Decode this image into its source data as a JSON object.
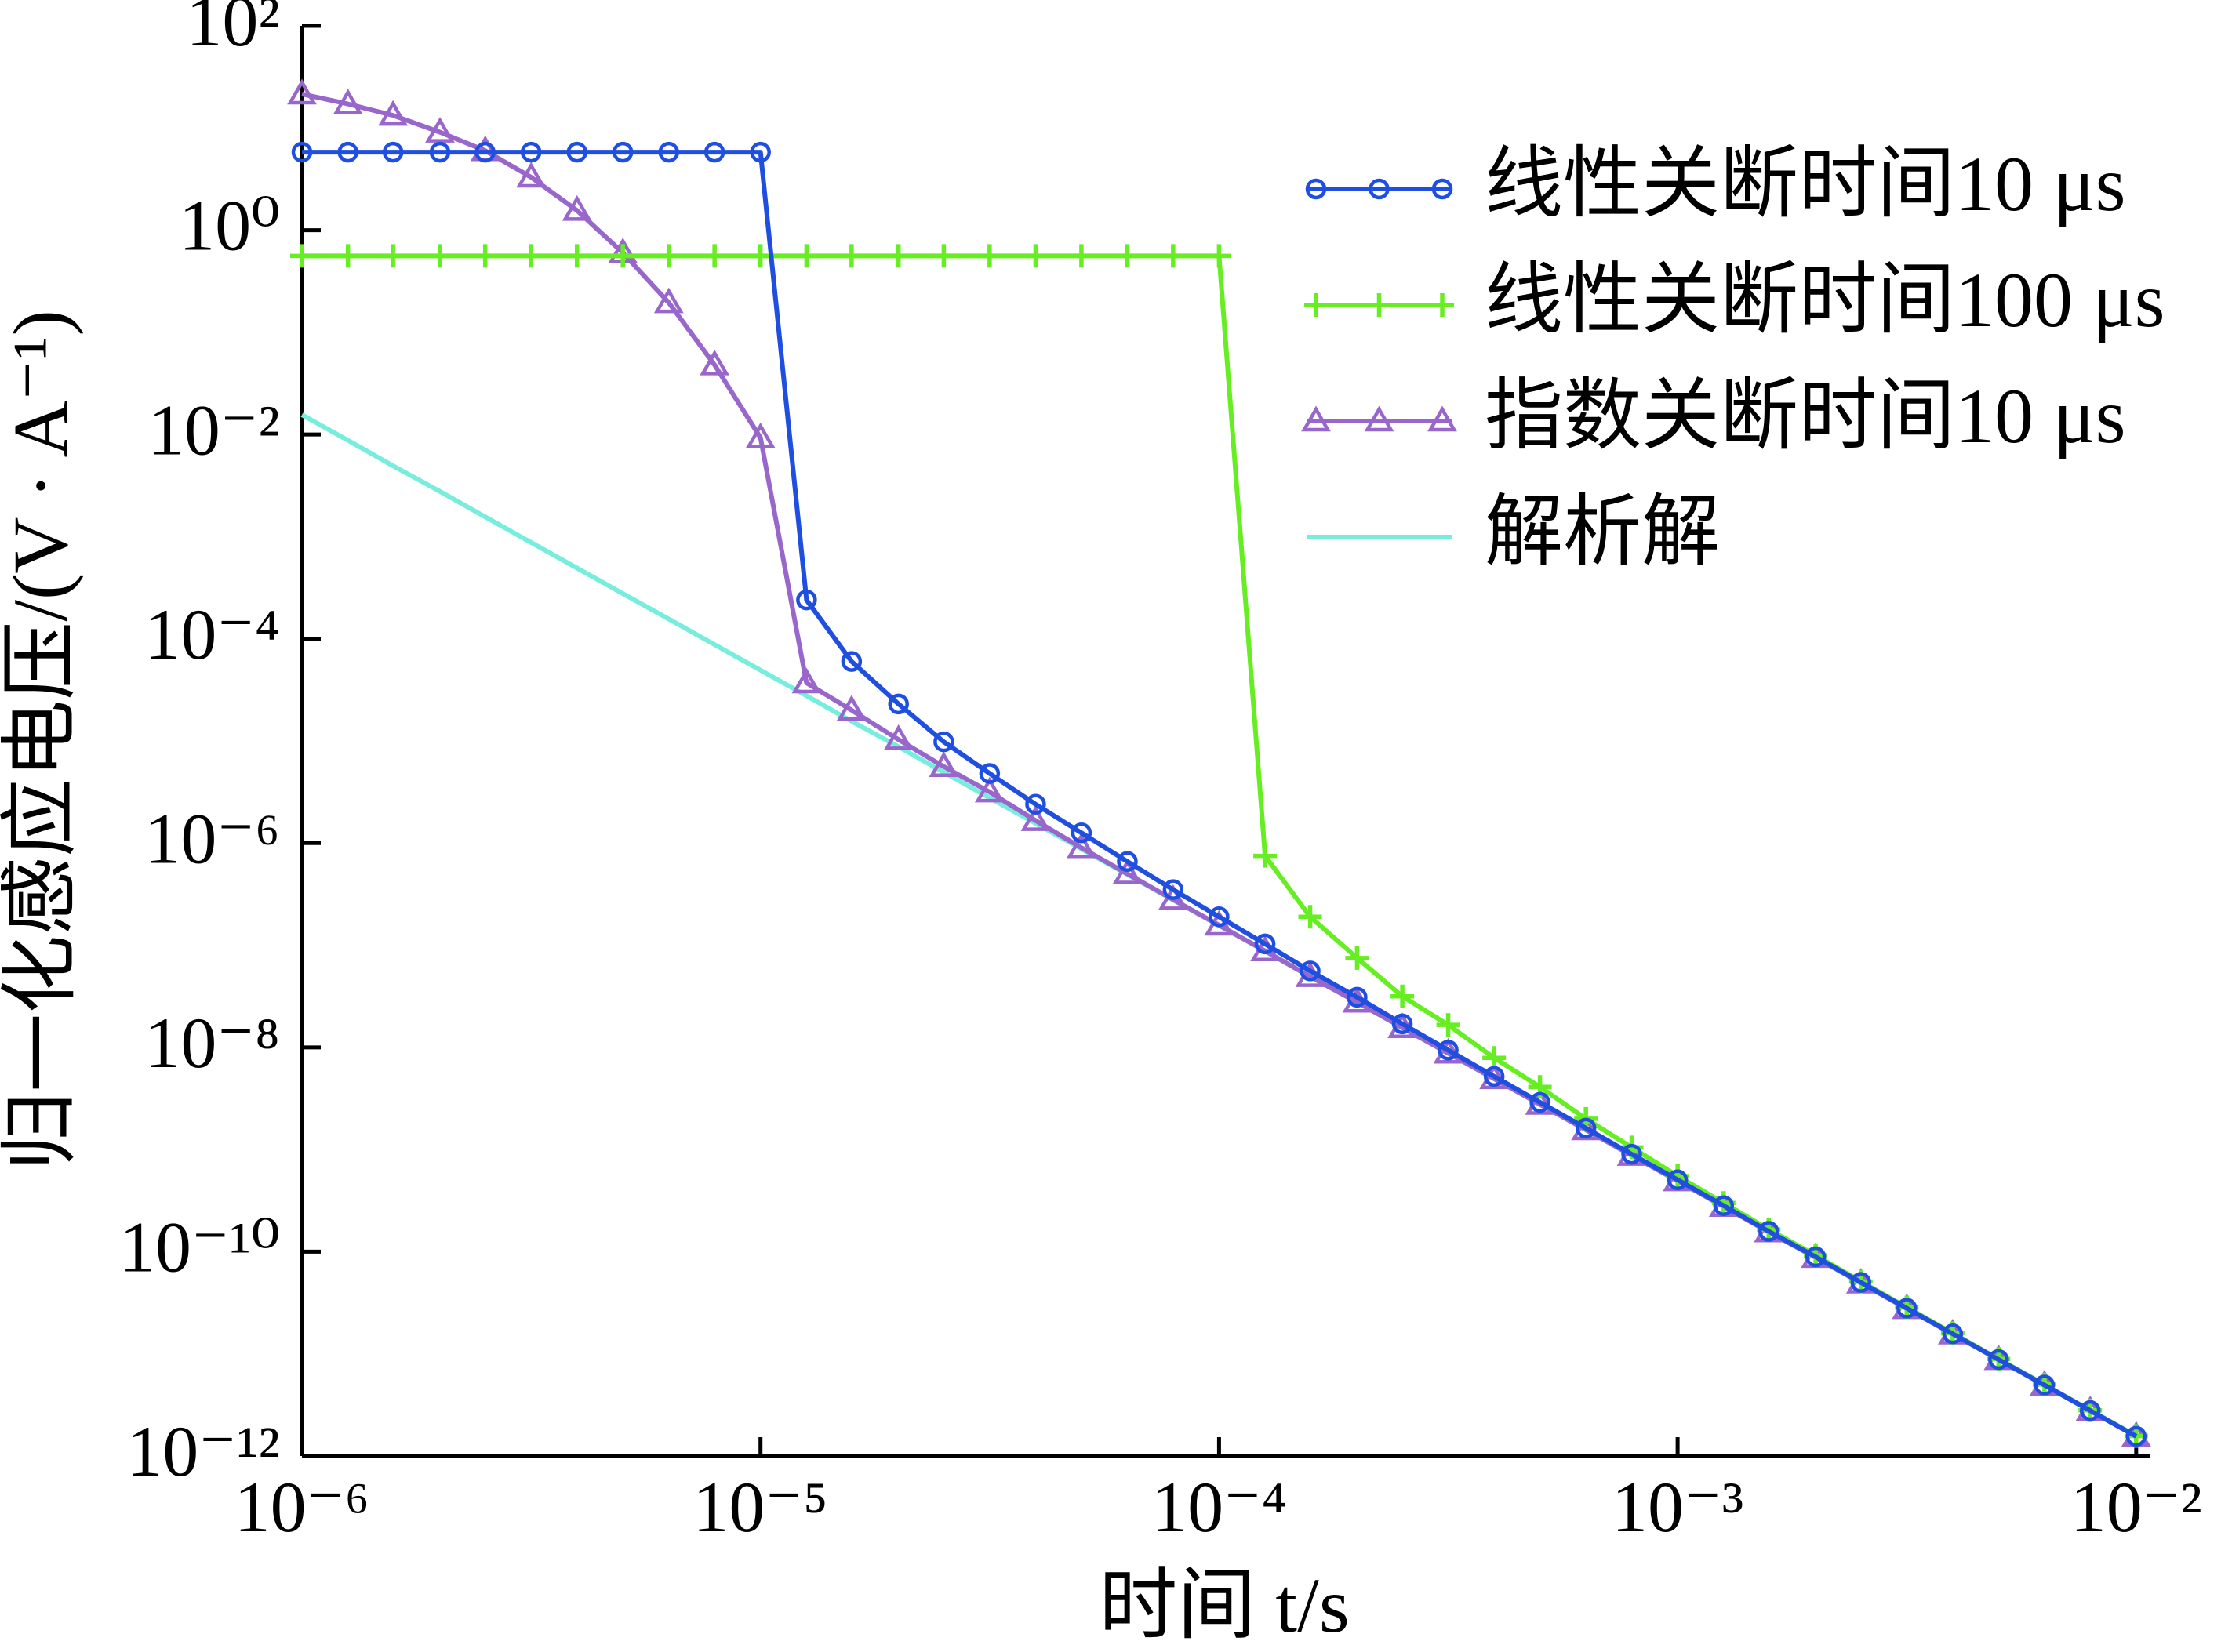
{
  "chart_data": {
    "type": "line",
    "xlabel": "时间 t/s",
    "ylabel": "归一化感应电压/(V · A⁻¹)",
    "x": [
      1e-06,
      1.26e-06,
      1.58e-06,
      2e-06,
      2.51e-06,
      3.16e-06,
      3.98e-06,
      5.01e-06,
      6.31e-06,
      7.94e-06,
      1e-05,
      1.26e-05,
      1.58e-05,
      2e-05,
      2.51e-05,
      3.16e-05,
      3.98e-05,
      5.01e-05,
      6.31e-05,
      7.94e-05,
      0.0001,
      0.000126,
      0.000158,
      0.0002,
      0.000251,
      0.000316,
      0.000398,
      0.000501,
      0.000631,
      0.000794,
      0.001,
      0.00126,
      0.00158,
      0.002,
      0.00251,
      0.00316,
      0.00398,
      0.00501,
      0.00631,
      0.00794,
      0.01
    ],
    "series": [
      {
        "name": "线性关断时间10 μs",
        "color": "#1f4fe0",
        "marker": "o",
        "values": [
          5.8,
          5.8,
          5.8,
          5.8,
          5.8,
          5.8,
          5.8,
          5.8,
          5.8,
          5.8,
          5.8,
          0.00024,
          6e-05,
          2.3e-05,
          9.8e-06,
          4.8e-06,
          2.4e-06,
          1.26e-06,
          6.6e-07,
          3.5e-07,
          1.9e-07,
          1.03e-07,
          5.6e-08,
          3.1e-08,
          1.7e-08,
          9.4e-09,
          5.2e-09,
          2.9e-09,
          1.62e-09,
          9e-10,
          5.05e-10,
          2.82e-10,
          1.58e-10,
          8.9e-11,
          5e-11,
          2.8e-11,
          1.57e-11,
          8.8e-12,
          4.95e-12,
          2.78e-12,
          1.56e-12
        ]
      },
      {
        "name": "线性关断时间100 μs",
        "color": "#66ee22",
        "marker": "+",
        "values": [
          0.56,
          0.56,
          0.56,
          0.56,
          0.56,
          0.56,
          0.56,
          0.56,
          0.56,
          0.56,
          0.56,
          0.56,
          0.56,
          0.56,
          0.56,
          0.56,
          0.56,
          0.56,
          0.56,
          0.56,
          0.56,
          7.5e-07,
          1.9e-07,
          7.5e-08,
          3.16e-08,
          1.66e-08,
          7.9e-09,
          4.1e-09,
          2e-09,
          1.05e-09,
          5.5e-10,
          3e-10,
          1.65e-10,
          9.2e-11,
          5.1e-11,
          2.85e-11,
          1.59e-11,
          8.9e-12,
          5e-12,
          2.8e-12,
          1.57e-12
        ]
      },
      {
        "name": "指数关断时间10 μs",
        "color": "#9966cc",
        "marker": "^",
        "values": [
          21.5,
          17.2,
          13.3,
          9.1,
          6,
          3.3,
          1.56,
          0.6,
          0.195,
          0.048,
          0.0093,
          3.7e-05,
          2e-05,
          1.03e-05,
          5.6e-06,
          3.16e-06,
          1.66e-06,
          9e-07,
          5e-07,
          2.8e-07,
          1.57e-07,
          8.8e-08,
          4.93e-08,
          2.77e-08,
          1.56e-08,
          8.77e-09,
          4.93e-09,
          2.77e-09,
          1.56e-09,
          8.77e-10,
          4.93e-10,
          2.77e-10,
          1.56e-10,
          8.77e-11,
          4.93e-11,
          2.77e-11,
          1.56e-11,
          8.77e-12,
          4.93e-12,
          2.77e-12,
          1.56e-12
        ]
      },
      {
        "name": "解析解",
        "color": "#77eedd",
        "values": [
          0.0156,
          0.00877,
          0.00493,
          0.00277,
          0.00156,
          0.000877,
          0.000493,
          0.000277,
          0.000156,
          8.77e-05,
          4.93e-05,
          2.77e-05,
          1.56e-05,
          8.77e-06,
          4.93e-06,
          2.77e-06,
          1.56e-06,
          8.77e-07,
          4.93e-07,
          2.77e-07,
          1.56e-07,
          8.77e-08,
          4.93e-08,
          2.77e-08,
          1.56e-08,
          8.77e-09,
          4.93e-09,
          2.77e-09,
          1.56e-09,
          8.77e-10,
          4.93e-10,
          2.77e-10,
          1.56e-10,
          8.77e-11,
          4.93e-11,
          2.77e-11,
          1.56e-11,
          8.77e-12,
          4.93e-12,
          2.77e-12,
          1.56e-12
        ]
      }
    ],
    "xscale": "log",
    "yscale": "log",
    "xlim": [
      1e-06,
      0.0107
    ],
    "ylim": [
      1e-12,
      100
    ],
    "xticks": [
      {
        "value": 1e-06,
        "label": "10⁻⁶"
      },
      {
        "value": 1e-05,
        "label": "10⁻⁵"
      },
      {
        "value": 0.0001,
        "label": "10⁻⁴"
      },
      {
        "value": 0.001,
        "label": "10⁻³"
      },
      {
        "value": 0.01,
        "label": "10⁻²"
      }
    ],
    "yticks": [
      {
        "value": 1e-12,
        "label": "10⁻¹²"
      },
      {
        "value": 1e-10,
        "label": "10⁻¹⁰"
      },
      {
        "value": 1e-08,
        "label": "10⁻⁸"
      },
      {
        "value": 1e-06,
        "label": "10⁻⁶"
      },
      {
        "value": 0.0001,
        "label": "10⁻⁴"
      },
      {
        "value": 0.01,
        "label": "10⁻²"
      },
      {
        "value": 1,
        "label": "10⁰"
      },
      {
        "value": 100,
        "label": "10²"
      }
    ],
    "grid": false,
    "legend": "upper right"
  }
}
